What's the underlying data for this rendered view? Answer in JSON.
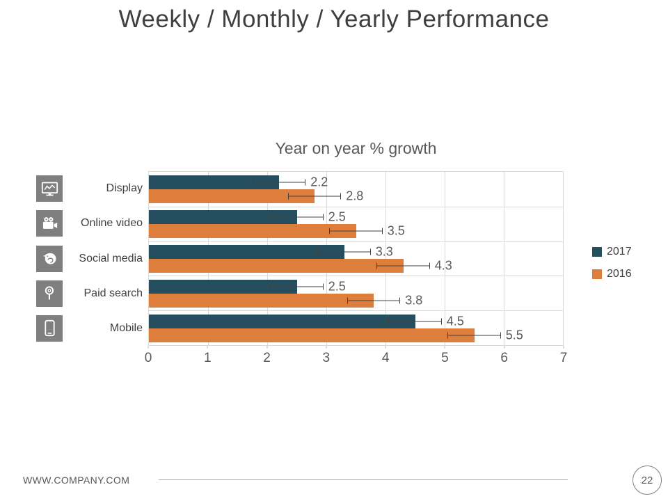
{
  "slide": {
    "title": "Weekly / Monthly / Yearly Performance",
    "footer": {
      "website": "WWW.COMPANY.COM",
      "page_number": "22"
    }
  },
  "chart_data": {
    "type": "bar",
    "orientation": "horizontal",
    "title": "Year on year % growth",
    "categories": [
      "Display",
      "Online video",
      "Social media",
      "Paid search",
      "Mobile"
    ],
    "category_icons": [
      "display-monitor-icon",
      "video-camera-icon",
      "social-bird-icon",
      "search-magnifier-icon",
      "mobile-phone-icon"
    ],
    "series": [
      {
        "name": "2017",
        "color": "#254e5e",
        "values": [
          2.2,
          2.5,
          3.3,
          2.5,
          4.5
        ]
      },
      {
        "name": "2016",
        "color": "#de7e3c",
        "values": [
          2.8,
          3.5,
          4.3,
          3.8,
          5.5
        ]
      }
    ],
    "data_labels": {
      "2017": [
        "2.2",
        "2.5",
        "3.3",
        "2.5",
        "4.5"
      ],
      "2016": [
        "2.8",
        "3.5",
        "4.3",
        "3.8",
        "5.5"
      ]
    },
    "error_bar_plus_minus": 0.45,
    "xlim": [
      0,
      7
    ],
    "xticks": [
      "0",
      "1",
      "2",
      "3",
      "4",
      "5",
      "6",
      "7"
    ],
    "grid": true,
    "legend_position": "right",
    "colors": {
      "axis_text": "#595959",
      "label_text": "#404040",
      "grid_line": "#d9d9d9",
      "error_bar": "#404040",
      "icon_background": "#7f7f7f"
    }
  }
}
